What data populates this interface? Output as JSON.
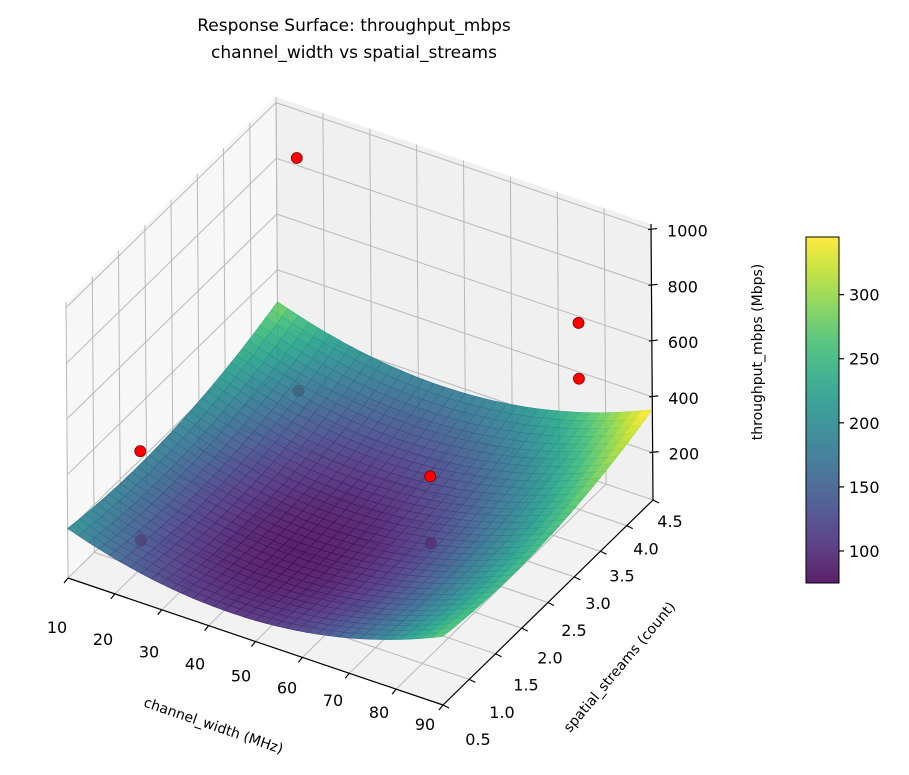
{
  "chart_data": {
    "type": "surface",
    "title": "Response Surface: throughput_mbps",
    "subtitle": "channel_width vs spatial_streams",
    "xlabel": "channel_width (MHz)",
    "ylabel": "spatial_streams (count)",
    "zlabel": "throughput_mbps (Mbps)",
    "xlim": [
      10,
      90
    ],
    "ylim": [
      0.5,
      4.5
    ],
    "zlim": [
      30,
      1020
    ],
    "xticks": [
      "10",
      "20",
      "30",
      "40",
      "50",
      "60",
      "70",
      "80",
      "90"
    ],
    "yticks": [
      "0.5",
      "1.0",
      "1.5",
      "2.0",
      "2.5",
      "3.0",
      "3.5",
      "4.0",
      "4.5"
    ],
    "zticks": [
      "200",
      "400",
      "600",
      "800",
      "1000"
    ],
    "grid": true,
    "colormap": "viridis",
    "surface_model": {
      "z0": 80,
      "x_center": 45,
      "y_center": 1.8,
      "x_curvature": 0.085,
      "y_curvature": 14
    },
    "colorbar": {
      "range": [
        75,
        345
      ],
      "ticks": [
        "100",
        "150",
        "200",
        "250",
        "300"
      ],
      "position": "right"
    },
    "points_color": "#ff0000",
    "points": [
      {
        "x": 20,
        "y": 4.0,
        "z": 950
      },
      {
        "x": 20,
        "y": 1.0,
        "z": 450
      },
      {
        "x": 80,
        "y": 4.0,
        "z": 700
      },
      {
        "x": 80,
        "y": 4.0,
        "z": 500
      },
      {
        "x": 65,
        "y": 2.5,
        "z": 340
      },
      {
        "x": 20,
        "y": 4.0,
        "z": 115
      },
      {
        "x": 20,
        "y": 1.0,
        "z": 130
      },
      {
        "x": 65,
        "y": 2.5,
        "z": 100
      }
    ]
  }
}
